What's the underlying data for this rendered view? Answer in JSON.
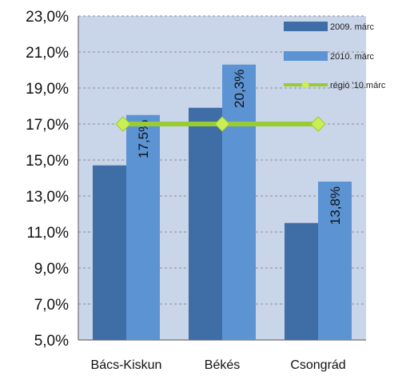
{
  "colors": {
    "plot_bg": "#c9d5e8",
    "series_2009": "#3f6da6",
    "series_2010": "#5c93d3",
    "region_line": "#99cc33",
    "region_marker": "#ccee55",
    "gridline": "#8a8f99",
    "page_bg": "#ffffff"
  },
  "chart_data": {
    "type": "bar",
    "title": "",
    "xlabel": "",
    "ylabel": "",
    "categories": [
      "Bács-Kiskun",
      "Békés",
      "Csongrád"
    ],
    "ylim": [
      5.0,
      23.0
    ],
    "yticks": [
      5.0,
      7.0,
      9.0,
      11.0,
      13.0,
      15.0,
      17.0,
      19.0,
      21.0,
      23.0
    ],
    "ytick_labels": [
      "5,0%",
      "7,0%",
      "9,0%",
      "11,0%",
      "13,0%",
      "15,0%",
      "17,0%",
      "19,0%",
      "21,0%",
      "23,0%"
    ],
    "grid": "horizontal dashed",
    "legend_position": "top-right inside plot",
    "series": [
      {
        "name": "2009. márc",
        "type": "bar",
        "color": "#3f6da6",
        "values": [
          14.7,
          17.9,
          11.5
        ]
      },
      {
        "name": "2010. márc",
        "type": "bar",
        "color": "#5c93d3",
        "values": [
          17.5,
          20.3,
          13.8
        ],
        "data_labels": [
          "17,5%",
          "20,3%",
          "13,8%"
        ]
      },
      {
        "name": "régió '10.márc",
        "type": "line",
        "color": "#99cc33",
        "values": [
          17.0,
          17.0,
          17.0
        ]
      }
    ]
  }
}
